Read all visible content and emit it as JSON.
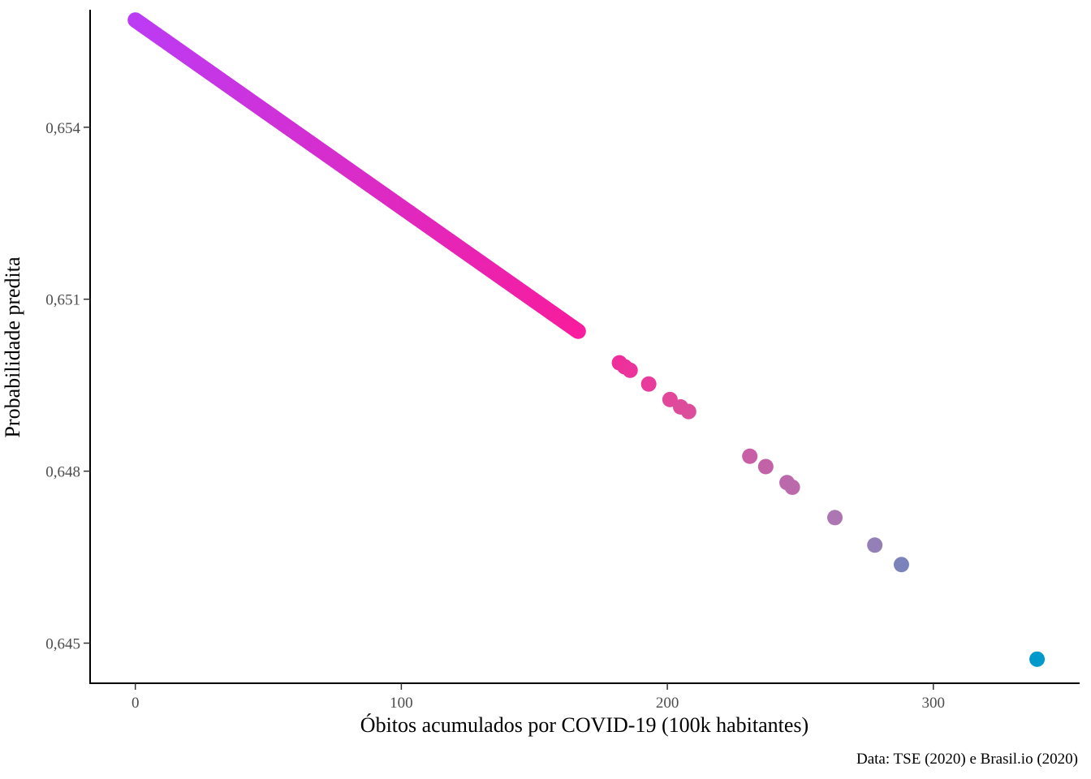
{
  "chart_data": {
    "type": "scatter",
    "title": "",
    "xlabel": "Óbitos acumulados por COVID-19 (100k habitantes)",
    "ylabel": "Probabilidade predita",
    "caption": "Data: TSE (2020) e  Brasil.io (2020)",
    "xlim": [
      -17,
      355
    ],
    "ylim": [
      0.6443,
      0.65605
    ],
    "x_ticks": [
      0,
      100,
      200,
      300
    ],
    "x_tick_labels": [
      "0",
      "100",
      "200",
      "300"
    ],
    "y_ticks": [
      0.645,
      0.648,
      0.651,
      0.654
    ],
    "y_tick_labels": [
      "0,645",
      "0,648",
      "0,651",
      "0,654"
    ],
    "grid": false,
    "legend": "none",
    "color_scale": {
      "stops": [
        {
          "t": 0.0,
          "color": "#bb3cf5"
        },
        {
          "t": 0.5,
          "color": "#f81c9c"
        },
        {
          "t": 0.6,
          "color": "#e04a9a"
        },
        {
          "t": 0.8,
          "color": "#a57cb5"
        },
        {
          "t": 1.0,
          "color": "#0099cc"
        }
      ]
    },
    "dense_segment": {
      "x_start": 0,
      "x_end": 166.5,
      "y_start": 0.65587,
      "y_end": 0.65044,
      "step": 0.25
    },
    "points": [
      {
        "x": 182,
        "y": 0.64989
      },
      {
        "x": 184,
        "y": 0.64982
      },
      {
        "x": 186,
        "y": 0.64976
      },
      {
        "x": 193,
        "y": 0.64952
      },
      {
        "x": 201,
        "y": 0.64925
      },
      {
        "x": 205,
        "y": 0.64912
      },
      {
        "x": 208,
        "y": 0.64904
      },
      {
        "x": 231,
        "y": 0.64826
      },
      {
        "x": 237,
        "y": 0.64808
      },
      {
        "x": 245,
        "y": 0.6478
      },
      {
        "x": 247,
        "y": 0.64772
      },
      {
        "x": 263,
        "y": 0.64719
      },
      {
        "x": 278,
        "y": 0.64671
      },
      {
        "x": 288,
        "y": 0.64637
      },
      {
        "x": 339,
        "y": 0.64472
      }
    ]
  }
}
